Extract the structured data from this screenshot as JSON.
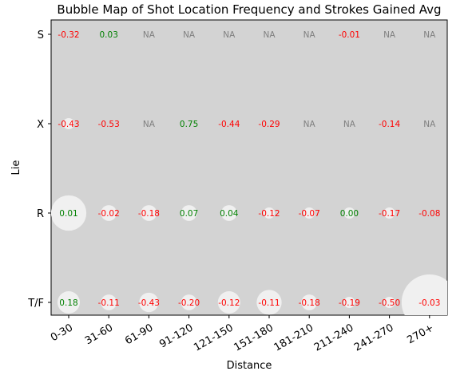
{
  "chart_data": {
    "type": "scatter",
    "title": "Bubble Map of Shot Location Frequency and Strokes Gained Avg",
    "xlabel": "Distance",
    "ylabel": "Lie",
    "categories": [
      "0-30",
      "31-60",
      "61-90",
      "91-120",
      "121-150",
      "151-180",
      "181-210",
      "211-240",
      "241-270",
      "270+"
    ],
    "lies": [
      "S",
      "X",
      "R",
      "T/F"
    ],
    "grid": false,
    "background": "#d3d3d3",
    "bubble_color": "#f0f0f0",
    "colors": {
      "positive": "#008000",
      "negative": "#ff0000",
      "na": "#808080"
    },
    "cells": [
      {
        "lie": "S",
        "distance": "0-30",
        "label": "-0.32",
        "sg": -0.32,
        "freq": 0
      },
      {
        "lie": "S",
        "distance": "31-60",
        "label": "0.03",
        "sg": 0.03,
        "freq": 0
      },
      {
        "lie": "S",
        "distance": "61-90",
        "label": "NA",
        "sg": null,
        "freq": 0
      },
      {
        "lie": "S",
        "distance": "91-120",
        "label": "NA",
        "sg": null,
        "freq": 0
      },
      {
        "lie": "S",
        "distance": "121-150",
        "label": "NA",
        "sg": null,
        "freq": 0
      },
      {
        "lie": "S",
        "distance": "151-180",
        "label": "NA",
        "sg": null,
        "freq": 0
      },
      {
        "lie": "S",
        "distance": "181-210",
        "label": "NA",
        "sg": null,
        "freq": 0
      },
      {
        "lie": "S",
        "distance": "211-240",
        "label": "-0.01",
        "sg": -0.01,
        "freq": 0
      },
      {
        "lie": "S",
        "distance": "241-270",
        "label": "NA",
        "sg": null,
        "freq": 0
      },
      {
        "lie": "S",
        "distance": "270+",
        "label": "NA",
        "sg": null,
        "freq": 0
      },
      {
        "lie": "X",
        "distance": "0-30",
        "label": "-0.43",
        "sg": -0.43,
        "freq": 1
      },
      {
        "lie": "X",
        "distance": "31-60",
        "label": "-0.53",
        "sg": -0.53,
        "freq": 0
      },
      {
        "lie": "X",
        "distance": "61-90",
        "label": "NA",
        "sg": null,
        "freq": 0
      },
      {
        "lie": "X",
        "distance": "91-120",
        "label": "0.75",
        "sg": 0.75,
        "freq": 0
      },
      {
        "lie": "X",
        "distance": "121-150",
        "label": "-0.44",
        "sg": -0.44,
        "freq": 0
      },
      {
        "lie": "X",
        "distance": "151-180",
        "label": "-0.29",
        "sg": -0.29,
        "freq": 0
      },
      {
        "lie": "X",
        "distance": "181-210",
        "label": "NA",
        "sg": null,
        "freq": 0
      },
      {
        "lie": "X",
        "distance": "211-240",
        "label": "NA",
        "sg": null,
        "freq": 0
      },
      {
        "lie": "X",
        "distance": "241-270",
        "label": "-0.14",
        "sg": -0.14,
        "freq": 0
      },
      {
        "lie": "X",
        "distance": "270+",
        "label": "NA",
        "sg": null,
        "freq": 0
      },
      {
        "lie": "R",
        "distance": "0-30",
        "label": "0.01",
        "sg": 0.01,
        "freq": 10
      },
      {
        "lie": "R",
        "distance": "31-60",
        "label": "-0.02",
        "sg": -0.02,
        "freq": 2
      },
      {
        "lie": "R",
        "distance": "61-90",
        "label": "-0.18",
        "sg": -0.18,
        "freq": 2
      },
      {
        "lie": "R",
        "distance": "91-120",
        "label": "0.07",
        "sg": 0.07,
        "freq": 2
      },
      {
        "lie": "R",
        "distance": "121-150",
        "label": "0.04",
        "sg": 0.04,
        "freq": 2
      },
      {
        "lie": "R",
        "distance": "151-180",
        "label": "-0.12",
        "sg": -0.12,
        "freq": 1
      },
      {
        "lie": "R",
        "distance": "181-210",
        "label": "-0.07",
        "sg": -0.07,
        "freq": 1
      },
      {
        "lie": "R",
        "distance": "211-240",
        "label": "0.00",
        "sg": 0.0,
        "freq": 1
      },
      {
        "lie": "R",
        "distance": "241-270",
        "label": "-0.17",
        "sg": -0.17,
        "freq": 1
      },
      {
        "lie": "R",
        "distance": "270+",
        "label": "-0.08",
        "sg": -0.08,
        "freq": 0
      },
      {
        "lie": "T/F",
        "distance": "0-30",
        "label": "0.18",
        "sg": 0.18,
        "freq": 4
      },
      {
        "lie": "T/F",
        "distance": "31-60",
        "label": "-0.11",
        "sg": -0.11,
        "freq": 2
      },
      {
        "lie": "T/F",
        "distance": "61-90",
        "label": "-0.43",
        "sg": -0.43,
        "freq": 3
      },
      {
        "lie": "T/F",
        "distance": "91-120",
        "label": "-0.20",
        "sg": -0.2,
        "freq": 2
      },
      {
        "lie": "T/F",
        "distance": "121-150",
        "label": "-0.12",
        "sg": -0.12,
        "freq": 4
      },
      {
        "lie": "T/F",
        "distance": "151-180",
        "label": "-0.11",
        "sg": -0.11,
        "freq": 5
      },
      {
        "lie": "T/F",
        "distance": "181-210",
        "label": "-0.18",
        "sg": -0.18,
        "freq": 2
      },
      {
        "lie": "T/F",
        "distance": "211-240",
        "label": "-0.19",
        "sg": -0.19,
        "freq": 1
      },
      {
        "lie": "T/F",
        "distance": "241-270",
        "label": "-0.50",
        "sg": -0.5,
        "freq": 1
      },
      {
        "lie": "T/F",
        "distance": "270+",
        "label": "-0.03",
        "sg": -0.03,
        "freq": 25
      }
    ]
  }
}
